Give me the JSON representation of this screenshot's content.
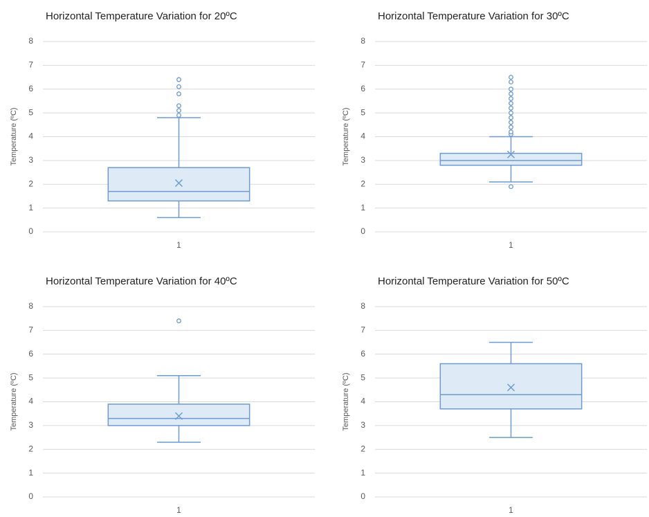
{
  "chart_data": [
    {
      "type": "box",
      "title": "Horizontal Temperature Variation for 20ºC",
      "y_label": "Temperature (ºC)",
      "categories": [
        "1"
      ],
      "whisker_low": 0.6,
      "q1": 1.3,
      "median": 1.7,
      "q3": 2.7,
      "whisker_high": 4.8,
      "mean": 2.05,
      "outliers": [
        4.9,
        5.1,
        5.3,
        5.8,
        6.1,
        6.4
      ],
      "ylim": [
        0,
        8
      ],
      "yticks": [
        0,
        1,
        2,
        3,
        4,
        5,
        6,
        7,
        8
      ],
      "grid": true,
      "color": "#6b9bd1",
      "fill": "#deeaf6"
    },
    {
      "type": "box",
      "title": "Horizontal Temperature Variation for 30ºC",
      "y_label": "Temperature (ºC)",
      "categories": [
        "1"
      ],
      "whisker_low": 2.1,
      "q1": 2.8,
      "median": 3.0,
      "q3": 3.3,
      "whisker_high": 4.0,
      "mean": 3.25,
      "outliers": [
        1.9,
        4.1,
        4.2,
        4.4,
        4.6,
        4.8,
        5.0,
        5.2,
        5.4,
        5.6,
        5.8,
        6.0,
        6.3,
        6.5
      ],
      "ylim": [
        0,
        8
      ],
      "yticks": [
        0,
        1,
        2,
        3,
        4,
        5,
        6,
        7,
        8
      ],
      "grid": true,
      "color": "#6b9bd1",
      "fill": "#deeaf6"
    },
    {
      "type": "box",
      "title": "Horizontal Temperature Variation for 40ºC",
      "y_label": "Temperature (ºC)",
      "categories": [
        "1"
      ],
      "whisker_low": 2.3,
      "q1": 3.0,
      "median": 3.3,
      "q3": 3.9,
      "whisker_high": 5.1,
      "mean": 3.4,
      "outliers": [
        7.4
      ],
      "ylim": [
        0,
        8
      ],
      "yticks": [
        0,
        1,
        2,
        3,
        4,
        5,
        6,
        7,
        8
      ],
      "grid": true,
      "color": "#6b9bd1",
      "fill": "#deeaf6"
    },
    {
      "type": "box",
      "title": "Horizontal Temperature Variation for 50ºC",
      "y_label": "Temperature (ºC)",
      "categories": [
        "1"
      ],
      "whisker_low": 2.5,
      "q1": 3.7,
      "median": 4.3,
      "q3": 5.6,
      "whisker_high": 6.5,
      "mean": 4.6,
      "ylim": [
        0,
        8
      ],
      "yticks": [
        0,
        1,
        2,
        3,
        4,
        5,
        6,
        7,
        8
      ],
      "grid": true,
      "color": "#6b9bd1",
      "fill": "#deeaf6"
    }
  ]
}
